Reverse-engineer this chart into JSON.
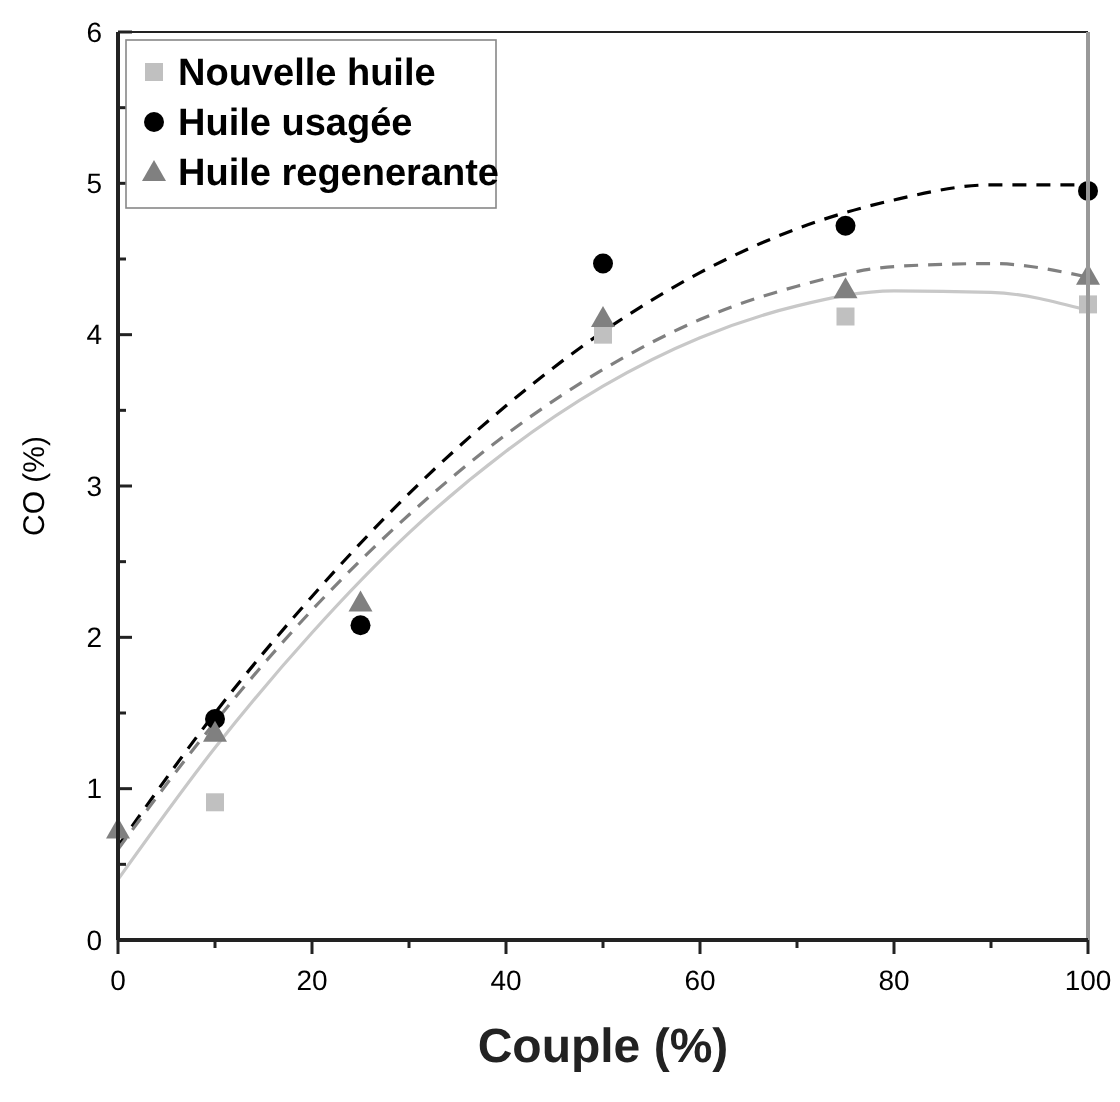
{
  "chart_data": {
    "type": "scatter",
    "xlabel": "Couple (%)",
    "ylabel": "CO (%)",
    "x": [
      0,
      10,
      25,
      50,
      75,
      100
    ],
    "xlim": [
      0,
      100
    ],
    "ylim": [
      0,
      6
    ],
    "xticks": [
      0,
      {
        "value": 10,
        "label": null
      },
      20,
      {
        "value": 30,
        "label": null
      },
      40,
      {
        "value": 50,
        "label": null
      },
      60,
      {
        "value": 70,
        "label": null
      },
      80,
      {
        "value": 90,
        "label": null
      },
      100
    ],
    "yticks": [
      0,
      {
        "value": 0.5,
        "label": null
      },
      1,
      {
        "value": 1.5,
        "label": null
      },
      2,
      {
        "value": 2.5,
        "label": null
      },
      3,
      {
        "value": 3.5,
        "label": null
      },
      4,
      {
        "value": 4.5,
        "label": null
      },
      5,
      {
        "value": 5.5,
        "label": null
      },
      6
    ],
    "grid": false,
    "legend": "top left",
    "series": [
      {
        "name": "Nouvelle huile",
        "color": "#c0c0c0",
        "marker": "square",
        "values": [
          null,
          0.91,
          null,
          4.0,
          4.12,
          4.2
        ]
      },
      {
        "name": "Huile usagée",
        "color": "#000000",
        "marker": "circle",
        "values": [
          null,
          1.46,
          2.08,
          4.47,
          4.72,
          4.95
        ]
      },
      {
        "name": "Huile regenerante",
        "color": "#808080",
        "marker": "triangle",
        "values": [
          0.73,
          1.37,
          2.23,
          4.11,
          4.3,
          4.39
        ]
      },
      {
        "type": "line",
        "color": "#c8c8c8",
        "line_style": "solid",
        "marker": "none",
        "x": [
          0,
          10,
          20,
          30,
          40,
          50,
          60,
          70,
          80,
          90,
          100
        ],
        "values": [
          0.4,
          1.27,
          2.03,
          2.69,
          3.23,
          3.66,
          3.98,
          4.19,
          4.29,
          4.28,
          4.16
        ]
      },
      {
        "type": "line",
        "color": "#000000",
        "line_style": "dashed",
        "marker": "none",
        "x": [
          0,
          10,
          20,
          30,
          40,
          50,
          60,
          70,
          80,
          90,
          100
        ],
        "values": [
          0.62,
          1.5,
          2.27,
          2.95,
          3.53,
          4.02,
          4.41,
          4.7,
          4.89,
          4.99,
          4.99
        ]
      },
      {
        "type": "line",
        "color": "#808080",
        "line_style": "dashed",
        "marker": "none",
        "x": [
          0,
          10,
          20,
          30,
          40,
          50,
          60,
          70,
          80,
          90,
          100
        ],
        "values": [
          0.6,
          1.44,
          2.18,
          2.81,
          3.34,
          3.77,
          4.1,
          4.32,
          4.45,
          4.47,
          4.38
        ]
      }
    ]
  }
}
